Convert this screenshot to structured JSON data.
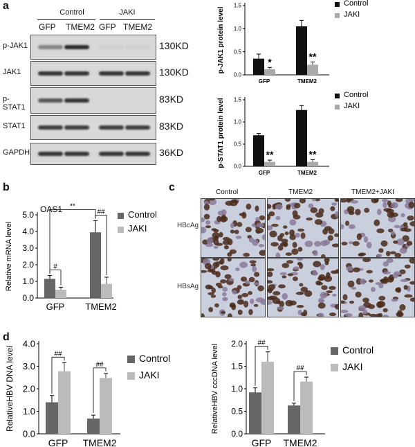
{
  "panels": {
    "a": "a",
    "b": "b",
    "c": "c",
    "d": "d"
  },
  "western": {
    "group_headers": [
      "Control",
      "JAKI"
    ],
    "lanes": [
      "GFP",
      "TMEM2",
      "GFP",
      "TMEM2"
    ],
    "rows": [
      {
        "name": "p-JAK1",
        "kd": "130KD",
        "intensity": [
          0.45,
          0.95,
          0.05,
          0.05
        ]
      },
      {
        "name": "JAK1",
        "kd": "130KD",
        "intensity": [
          0.9,
          0.9,
          0.9,
          0.9
        ]
      },
      {
        "name": "p-STAT1",
        "kd": "83KD",
        "intensity": [
          0.7,
          0.9,
          0.0,
          0.0
        ]
      },
      {
        "name": "STAT1",
        "kd": "83KD",
        "intensity": [
          0.85,
          0.85,
          0.85,
          0.85
        ]
      },
      {
        "name": "GAPDH",
        "kd": "36KD",
        "intensity": [
          0.9,
          0.9,
          0.9,
          0.9
        ]
      }
    ]
  },
  "ihc": {
    "columns": [
      "Control",
      "TMEM2",
      "TMEM2+JAKI"
    ],
    "rows": [
      "HBcAg",
      "HBsAg"
    ],
    "colors": {
      "bg": "#c9cfdc",
      "cell": "#4a2a1a",
      "light": "#8a7a9a"
    }
  },
  "chart_data": [
    {
      "id": "pjak1",
      "type": "bar",
      "categories": [
        "GFP",
        "TMEM2"
      ],
      "series": [
        {
          "name": "Control",
          "values": [
            0.35,
            1.05
          ],
          "err": [
            0.1,
            0.13
          ],
          "color": "#111111"
        },
        {
          "name": "JAKI",
          "values": [
            0.12,
            0.22
          ],
          "err": [
            0.04,
            0.06
          ],
          "color": "#aaaaaa"
        }
      ],
      "ylabel": "p-JAK1 protein level",
      "ylim": [
        0,
        1.5
      ],
      "yticks": [
        "0.0",
        "0.5",
        "1.0",
        "1.5"
      ],
      "annotations": [
        {
          "cat": 0,
          "series": 1,
          "text": "*"
        },
        {
          "cat": 1,
          "series": 1,
          "text": "**"
        }
      ]
    },
    {
      "id": "pstat1",
      "type": "bar",
      "categories": [
        "GFP",
        "TMEM2"
      ],
      "series": [
        {
          "name": "Control",
          "values": [
            0.7,
            1.27
          ],
          "err": [
            0.04,
            0.1
          ],
          "color": "#111111"
        },
        {
          "name": "JAKI",
          "values": [
            0.1,
            0.1
          ],
          "err": [
            0.04,
            0.05
          ],
          "color": "#aaaaaa"
        }
      ],
      "ylabel": "p-STAT1 protein level",
      "ylim": [
        0,
        1.5
      ],
      "yticks": [
        "0.0",
        "0.5",
        "1.0",
        "1.5"
      ],
      "annotations": [
        {
          "cat": 0,
          "series": 1,
          "text": "**"
        },
        {
          "cat": 1,
          "series": 1,
          "text": "**"
        }
      ]
    },
    {
      "id": "oas1",
      "type": "bar",
      "title": "OAS1",
      "categories": [
        "GFP",
        "TMEM2"
      ],
      "series": [
        {
          "name": "Control",
          "values": [
            1.15,
            3.95
          ],
          "err": [
            0.2,
            0.7
          ],
          "color": "#666666"
        },
        {
          "name": "JAKI",
          "values": [
            0.5,
            0.85
          ],
          "err": [
            0.15,
            0.4
          ],
          "color": "#bbbbbb"
        }
      ],
      "ylabel": "Relative mRNA level",
      "ylim": [
        0,
        5
      ],
      "yticks": [
        "0.0",
        "1.0",
        "2.0",
        "3.0",
        "4.0",
        "5.0"
      ],
      "sig": [
        {
          "from": [
            0,
            0
          ],
          "to": [
            0,
            1
          ],
          "text": "#"
        },
        {
          "from": [
            1,
            0
          ],
          "to": [
            1,
            1
          ],
          "text": "##"
        },
        {
          "from": [
            0,
            0
          ],
          "to": [
            1,
            0
          ],
          "text": "**"
        }
      ]
    },
    {
      "id": "hbvdna",
      "type": "bar",
      "categories": [
        "GFP",
        "TMEM2"
      ],
      "series": [
        {
          "name": "Control",
          "values": [
            1.4,
            0.68
          ],
          "err": [
            0.3,
            0.15
          ],
          "color": "#666666"
        },
        {
          "name": "JAKI",
          "values": [
            2.78,
            2.48
          ],
          "err": [
            0.38,
            0.2
          ],
          "color": "#bbbbbb"
        }
      ],
      "ylabel": "RelativeHBV DNA level",
      "ylim": [
        0,
        4
      ],
      "yticks": [
        "0.0",
        "1.0",
        "2.0",
        "3.0",
        "4.0"
      ],
      "sig": [
        {
          "from": [
            0,
            0
          ],
          "to": [
            0,
            1
          ],
          "text": "##"
        },
        {
          "from": [
            1,
            0
          ],
          "to": [
            1,
            1
          ],
          "text": "##"
        }
      ]
    },
    {
      "id": "cccdna",
      "type": "bar",
      "categories": [
        "GFP",
        "TMEM2"
      ],
      "series": [
        {
          "name": "Control",
          "values": [
            0.92,
            0.63
          ],
          "err": [
            0.1,
            0.05
          ],
          "color": "#666666"
        },
        {
          "name": "JAKI",
          "values": [
            1.6,
            1.16
          ],
          "err": [
            0.22,
            0.1
          ],
          "color": "#bbbbbb"
        }
      ],
      "ylabel": "RelativeHBV cccDNA level",
      "ylim": [
        0,
        2
      ],
      "yticks": [
        "0.0",
        "0.5",
        "1.0",
        "1.5",
        "2.0"
      ],
      "sig": [
        {
          "from": [
            0,
            0
          ],
          "to": [
            0,
            1
          ],
          "text": "##"
        },
        {
          "from": [
            1,
            0
          ],
          "to": [
            1,
            1
          ],
          "text": "##"
        }
      ]
    }
  ]
}
